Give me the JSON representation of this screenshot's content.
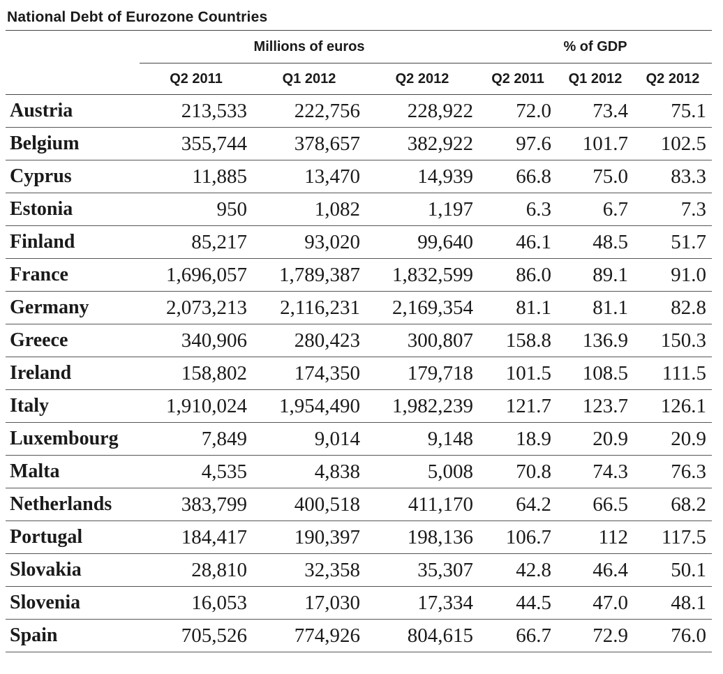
{
  "title": "National Debt of Eurozone Countries",
  "group_headers": {
    "euros": "Millions of euros",
    "gdp": "% of GDP"
  },
  "period_headers": [
    "Q2 2011",
    "Q1 2012",
    "Q2 2012",
    "Q2 2011",
    "Q1 2012",
    "Q2 2012"
  ],
  "rows": [
    {
      "country": "Austria",
      "values": [
        "213,533",
        "222,756",
        "228,922",
        "72.0",
        "73.4",
        "75.1"
      ]
    },
    {
      "country": "Belgium",
      "values": [
        "355,744",
        "378,657",
        "382,922",
        "97.6",
        "101.7",
        "102.5"
      ]
    },
    {
      "country": "Cyprus",
      "values": [
        "11,885",
        "13,470",
        "14,939",
        "66.8",
        "75.0",
        "83.3"
      ]
    },
    {
      "country": "Estonia",
      "values": [
        "950",
        "1,082",
        "1,197",
        "6.3",
        "6.7",
        "7.3"
      ]
    },
    {
      "country": "Finland",
      "values": [
        "85,217",
        "93,020",
        "99,640",
        "46.1",
        "48.5",
        "51.7"
      ]
    },
    {
      "country": "France",
      "values": [
        "1,696,057",
        "1,789,387",
        "1,832,599",
        "86.0",
        "89.1",
        "91.0"
      ]
    },
    {
      "country": "Germany",
      "values": [
        "2,073,213",
        "2,116,231",
        "2,169,354",
        "81.1",
        "81.1",
        "82.8"
      ]
    },
    {
      "country": "Greece",
      "values": [
        "340,906",
        "280,423",
        "300,807",
        "158.8",
        "136.9",
        "150.3"
      ]
    },
    {
      "country": "Ireland",
      "values": [
        "158,802",
        "174,350",
        "179,718",
        "101.5",
        "108.5",
        "111.5"
      ]
    },
    {
      "country": "Italy",
      "values": [
        "1,910,024",
        "1,954,490",
        "1,982,239",
        "121.7",
        "123.7",
        "126.1"
      ]
    },
    {
      "country": "Luxembourg",
      "values": [
        "7,849",
        "9,014",
        "9,148",
        "18.9",
        "20.9",
        "20.9"
      ]
    },
    {
      "country": "Malta",
      "values": [
        "4,535",
        "4,838",
        "5,008",
        "70.8",
        "74.3",
        "76.3"
      ]
    },
    {
      "country": "Netherlands",
      "values": [
        "383,799",
        "400,518",
        "411,170",
        "64.2",
        "66.5",
        "68.2"
      ]
    },
    {
      "country": "Portugal",
      "values": [
        "184,417",
        "190,397",
        "198,136",
        "106.7",
        "112",
        "117.5"
      ]
    },
    {
      "country": "Slovakia",
      "values": [
        "28,810",
        "32,358",
        "35,307",
        "42.8",
        "46.4",
        "50.1"
      ]
    },
    {
      "country": "Slovenia",
      "values": [
        "16,053",
        "17,030",
        "17,334",
        "44.5",
        "47.0",
        "48.1"
      ]
    },
    {
      "country": "Spain",
      "values": [
        "705,526",
        "774,926",
        "804,615",
        "66.7",
        "72.9",
        "76.0"
      ]
    }
  ],
  "chart_data": {
    "type": "table",
    "title": "National Debt of Eurozone Countries",
    "columns": [
      "",
      "Q2 2011",
      "Q1 2012",
      "Q2 2012",
      "Q2 2011",
      "Q1 2012",
      "Q2 2012"
    ],
    "column_groups": [
      {
        "label": "Millions of euros",
        "columns": [
          "Q2 2011",
          "Q1 2012",
          "Q2 2012"
        ]
      },
      {
        "label": "% of GDP",
        "columns": [
          "Q2 2011",
          "Q1 2012",
          "Q2 2012"
        ]
      }
    ],
    "rows": [
      [
        "Austria",
        213533,
        222756,
        228922,
        72.0,
        73.4,
        75.1
      ],
      [
        "Belgium",
        355744,
        378657,
        382922,
        97.6,
        101.7,
        102.5
      ],
      [
        "Cyprus",
        11885,
        13470,
        14939,
        66.8,
        75.0,
        83.3
      ],
      [
        "Estonia",
        950,
        1082,
        1197,
        6.3,
        6.7,
        7.3
      ],
      [
        "Finland",
        85217,
        93020,
        99640,
        46.1,
        48.5,
        51.7
      ],
      [
        "France",
        1696057,
        1789387,
        1832599,
        86.0,
        89.1,
        91.0
      ],
      [
        "Germany",
        2073213,
        2116231,
        2169354,
        81.1,
        81.1,
        82.8
      ],
      [
        "Greece",
        340906,
        280423,
        300807,
        158.8,
        136.9,
        150.3
      ],
      [
        "Ireland",
        158802,
        174350,
        179718,
        101.5,
        108.5,
        111.5
      ],
      [
        "Italy",
        1910024,
        1954490,
        1982239,
        121.7,
        123.7,
        126.1
      ],
      [
        "Luxembourg",
        7849,
        9014,
        9148,
        18.9,
        20.9,
        20.9
      ],
      [
        "Malta",
        4535,
        4838,
        5008,
        70.8,
        74.3,
        76.3
      ],
      [
        "Netherlands",
        383799,
        400518,
        411170,
        64.2,
        66.5,
        68.2
      ],
      [
        "Portugal",
        184417,
        190397,
        198136,
        106.7,
        112,
        117.5
      ],
      [
        "Slovakia",
        28810,
        32358,
        35307,
        42.8,
        46.4,
        50.1
      ],
      [
        "Slovenia",
        16053,
        17030,
        17334,
        44.5,
        47.0,
        48.1
      ],
      [
        "Spain",
        705526,
        774926,
        804615,
        66.7,
        72.9,
        76.0
      ]
    ]
  }
}
